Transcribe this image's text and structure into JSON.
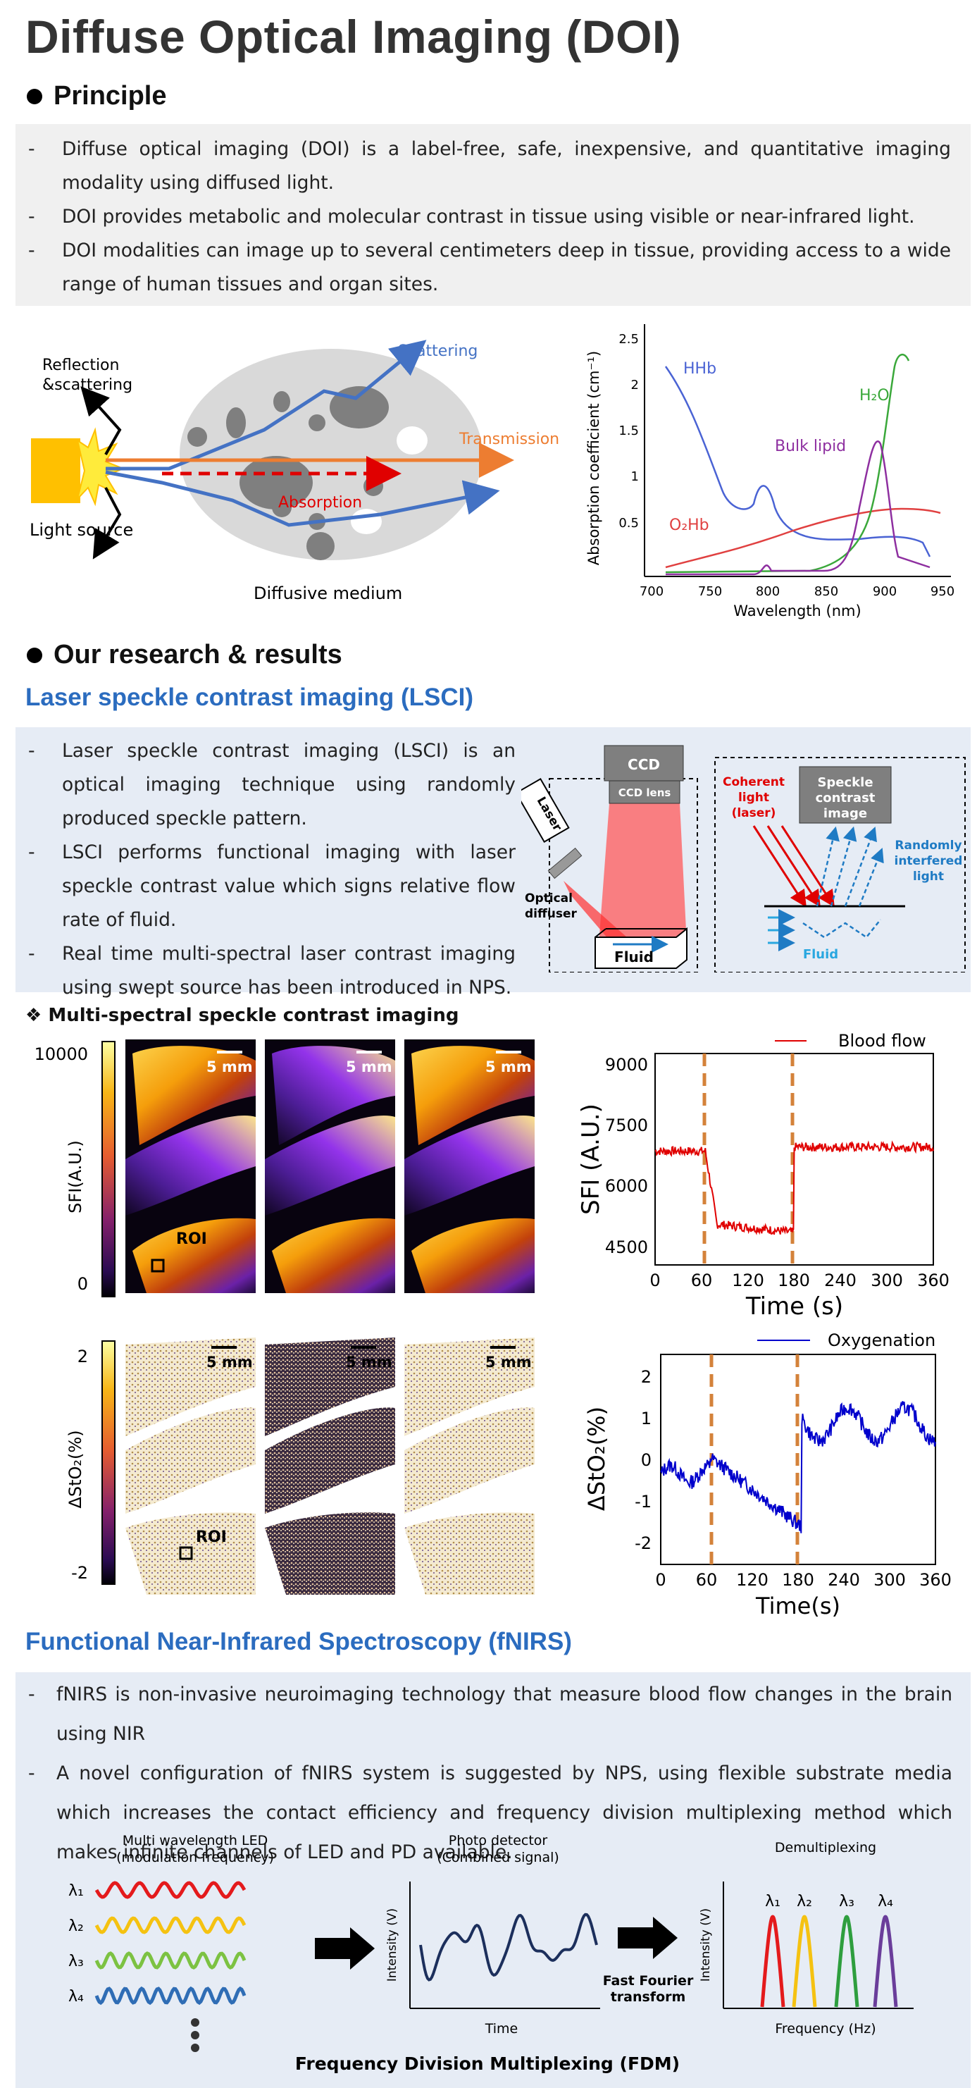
{
  "title": "Diffuse Optical Imaging (DOI)",
  "principle": {
    "heading": "Principle",
    "bullets": [
      "Diffuse optical imaging (DOI) is a label-free, safe, inexpensive, and quantitative imaging modality using diffused light.",
      "DOI provides metabolic and molecular contrast in tissue using visible or near-infrared light.",
      "DOI modalities can image up to several centimeters deep in tissue, providing access to a wide range of human tissues and organ sites."
    ],
    "diagram": {
      "reflection": "Reflection",
      "scattering_amp": "&scattering",
      "scattering": "Scattering",
      "transmission": "Transmission",
      "absorption": "Absorption",
      "light_source": "Light source",
      "diffusive_medium": "Diffusive medium"
    }
  },
  "absorption_chart": {
    "ylabel": "Absorption coefficient (cm⁻¹)",
    "xlabel": "Wavelength (nm)",
    "xticks": [
      "700",
      "750",
      "800",
      "850",
      "900",
      "950"
    ],
    "yticks": [
      "0.5",
      "1",
      "1.5",
      "2",
      "2.5"
    ],
    "labels": {
      "hhb": "HHb",
      "h2o": "H₂O",
      "lipid": "Bulk lipid",
      "o2hb": "O₂Hb"
    },
    "colors": {
      "hhb": "#4a63d4",
      "h2o": "#3aa83a",
      "lipid": "#8e2fa0",
      "o2hb": "#e04040"
    }
  },
  "research": {
    "heading": "Our research & results"
  },
  "lsci": {
    "heading": "Laser speckle contrast imaging (LSCI)",
    "bullets": [
      "Laser speckle contrast imaging (LSCI) is an optical imaging technique using randomly produced speckle pattern.",
      "LSCI performs functional imaging with laser speckle contrast value which signs relative flow rate of fluid.",
      "Real time multi-spectral laser contrast imaging using swept source has been introduced in NPS."
    ],
    "diagram": {
      "ccd": "CCD",
      "ccd_lens": "CCD lens",
      "laser": "Laser",
      "optical": "Optical",
      "diffuser": "diffuser",
      "fluid": "Fluid",
      "coherent1": "Coherent",
      "coherent2": "light",
      "coherent3": "(laser)",
      "speckle1": "Speckle",
      "speckle2": "contrast",
      "speckle3": "image",
      "random1": "Randomly",
      "random2": "interfered",
      "random3": "light",
      "fluid2": "Fluid"
    }
  },
  "multispectral": {
    "heading": "Multi-spectral speckle contrast imaging",
    "sfi_scale": {
      "max": "10000",
      "min": "0",
      "label": "SFI(A.U.)"
    },
    "sto2_scale": {
      "max": "2",
      "min": "-2",
      "label": "ΔStO₂(%)"
    },
    "scalebar": "5 mm",
    "roi": "ROI"
  },
  "sfi_chart": {
    "legend": "Blood flow",
    "ylabel": "SFI (A.U.)",
    "xlabel": "Time (s)",
    "yticks": [
      "4500",
      "6000",
      "7500",
      "9000"
    ],
    "xticks": [
      "0",
      "60",
      "120",
      "180",
      "240",
      "300",
      "360"
    ]
  },
  "sto2_chart": {
    "legend": "Oxygenation",
    "ylabel": "ΔStO₂(%)",
    "xlabel": "Time(s)",
    "yticks": [
      "-2",
      "-1",
      "0",
      "1",
      "2"
    ],
    "xticks": [
      "0",
      "60",
      "120",
      "180",
      "240",
      "300",
      "360"
    ]
  },
  "fnirs": {
    "heading": "Functional Near-Infrared Spectroscopy (fNIRS)",
    "bullets": [
      "fNIRS is non-invasive neuroimaging technology that measure blood flow changes in the brain using NIR",
      "A novel configuration of fNIRS system is suggested by NPS, using flexible substrate media which increases the contact efficiency and frequency division multiplexing method which makes infinite channels of LED and PD available."
    ],
    "fdm": {
      "led_title1": "Multi wavelength LED",
      "led_title2": "(modulation frequency)",
      "l1": "λ₁",
      "l2": "λ₂",
      "l3": "λ₃",
      "l4": "λ₄",
      "pd_title1": "Photo detector",
      "pd_title2": "(Combined signal)",
      "intensity": "Intensity (V)",
      "time": "Time",
      "fft1": "Fast Fourier",
      "fft2": "transform",
      "demux": "Demultiplexing",
      "freq": "Frequency (Hz)",
      "caption": "Frequency Division Multiplexing (FDM)"
    }
  }
}
